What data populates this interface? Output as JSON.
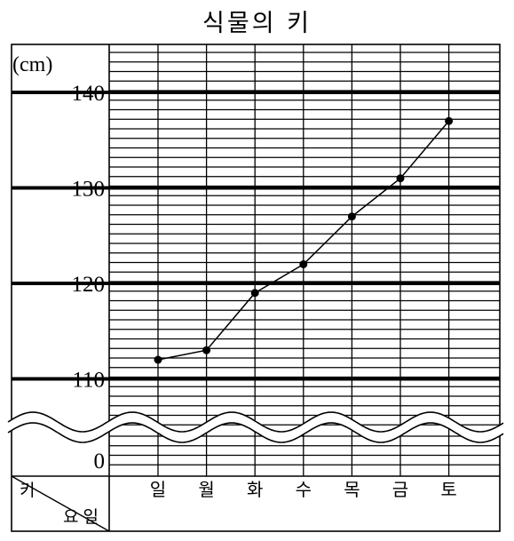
{
  "chart_data": {
    "type": "line",
    "title": "식물의 키",
    "unit_label": "(cm)",
    "categories": [
      "일",
      "월",
      "화",
      "수",
      "목",
      "금",
      "토"
    ],
    "values": [
      112,
      113,
      119,
      122,
      127,
      131,
      137
    ],
    "y_ticks": [
      "140",
      "130",
      "120",
      "110",
      "0"
    ],
    "ylim": [
      105,
      142
    ],
    "axis_break": true,
    "grid": true,
    "table_header": {
      "top": "키",
      "bottom": "요일"
    }
  },
  "colors": {
    "line": "#000000",
    "grid": "#000000",
    "background": "#ffffff"
  }
}
